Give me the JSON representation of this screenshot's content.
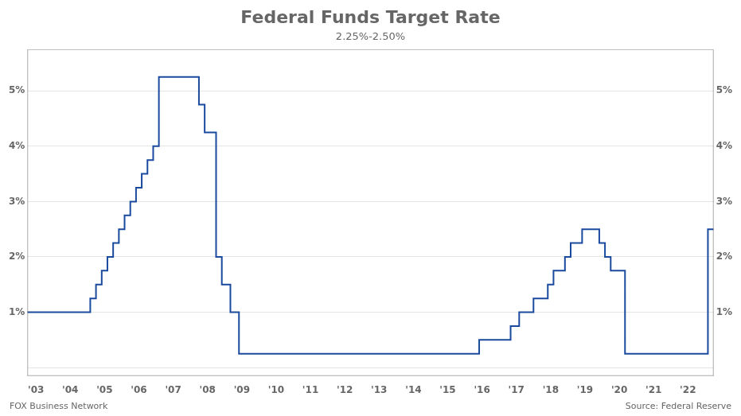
{
  "chart_data": {
    "type": "line",
    "title": "Federal Funds Target Rate",
    "subtitle": "2.25%-2.50%",
    "annotations": [
      "FOX Business Network",
      "Source: Federal Reserve"
    ],
    "color": "#1a4a9e",
    "line_style": "step",
    "grid": "y",
    "x": [
      2003.0,
      2004.583,
      2004.75,
      2004.917,
      2005.083,
      2005.25,
      2005.417,
      2005.583,
      2005.75,
      2005.917,
      2006.083,
      2006.25,
      2006.417,
      2006.583,
      2006.583,
      2007.583,
      2007.75,
      2007.917,
      2008.25,
      2008.417,
      2008.667,
      2008.917,
      2015.917,
      2016.833,
      2017.083,
      2017.5,
      2017.917,
      2018.083,
      2018.417,
      2018.583,
      2018.917,
      2019.417,
      2019.583,
      2019.75,
      2020.167,
      2022.25,
      2022.583
    ],
    "values": [
      1.0,
      1.25,
      1.5,
      1.75,
      2.0,
      2.25,
      2.5,
      2.75,
      3.0,
      3.25,
      3.5,
      3.75,
      4.0,
      4.25,
      5.25,
      5.25,
      4.75,
      4.25,
      2.0,
      1.5,
      1.0,
      0.25,
      0.5,
      0.75,
      1.0,
      1.25,
      1.5,
      1.75,
      2.0,
      2.25,
      2.5,
      2.25,
      2.0,
      1.75,
      0.25,
      0.25,
      2.5
    ],
    "xlim": [
      2002.75,
      2022.75
    ],
    "xticks": [
      {
        "value": 2003,
        "label": "'03"
      },
      {
        "value": 2004,
        "label": "'04"
      },
      {
        "value": 2005,
        "label": "'05"
      },
      {
        "value": 2006,
        "label": "'06"
      },
      {
        "value": 2007,
        "label": "'07"
      },
      {
        "value": 2008,
        "label": "'08"
      },
      {
        "value": 2009,
        "label": "'09"
      },
      {
        "value": 2010,
        "label": "'10"
      },
      {
        "value": 2011,
        "label": "'11"
      },
      {
        "value": 2012,
        "label": "'12"
      },
      {
        "value": 2013,
        "label": "'13"
      },
      {
        "value": 2014,
        "label": "'14"
      },
      {
        "value": 2015,
        "label": "'15"
      },
      {
        "value": 2016,
        "label": "'16"
      },
      {
        "value": 2017,
        "label": "'17"
      },
      {
        "value": 2018,
        "label": "'18"
      },
      {
        "value": 2019,
        "label": "'19"
      },
      {
        "value": 2020,
        "label": "'20"
      },
      {
        "value": 2021,
        "label": "'21"
      },
      {
        "value": 2022,
        "label": "'22"
      }
    ],
    "ylim": [
      -0.15,
      5.75
    ],
    "yticks": [
      {
        "value": 0,
        "label": ""
      },
      {
        "value": 1,
        "label": "1%"
      },
      {
        "value": 2,
        "label": "2%"
      },
      {
        "value": 3,
        "label": "3%"
      },
      {
        "value": 4,
        "label": "4%"
      },
      {
        "value": 5,
        "label": "5%"
      }
    ],
    "y2lim": [
      -0.15,
      5.75
    ],
    "y2ticks": [
      {
        "value": 0,
        "label": ""
      },
      {
        "value": 1,
        "label": "1%"
      },
      {
        "value": 2,
        "label": "2%"
      },
      {
        "value": 3,
        "label": "3%"
      },
      {
        "value": 4,
        "label": "4%"
      },
      {
        "value": 5,
        "label": "5%"
      }
    ],
    "legend": false
  }
}
